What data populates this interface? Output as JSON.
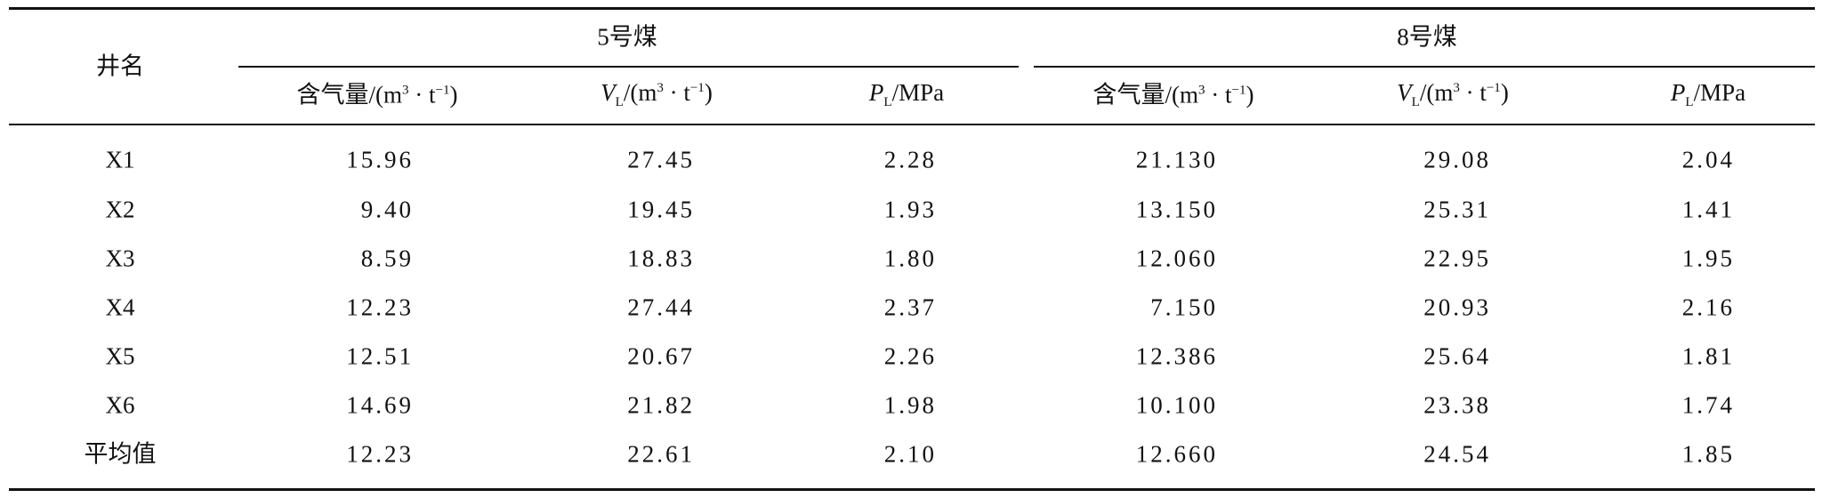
{
  "table": {
    "corner": "井名",
    "groups": [
      "5号煤",
      "8号煤"
    ],
    "columns": [
      {
        "parts": [
          "含气量/(m",
          "3",
          " · t",
          "−1",
          ")"
        ]
      },
      {
        "parts": [
          "V",
          "L",
          "/(m",
          "3",
          " · t",
          "−1",
          ")"
        ]
      },
      {
        "parts": [
          "P",
          "L",
          "/MPa"
        ]
      },
      {
        "parts": [
          "含气量/(m",
          "3",
          " · t",
          "−1",
          ")"
        ]
      },
      {
        "parts": [
          "V",
          "L",
          "/(m",
          "3",
          " · t",
          "−1",
          ")"
        ]
      },
      {
        "parts": [
          "P",
          "L",
          "/MPa"
        ]
      }
    ],
    "rows": [
      [
        "X1",
        "15.96",
        "27.45",
        "2.28",
        "21.130",
        "29.08",
        "2.04"
      ],
      [
        "X2",
        "9.40",
        "19.45",
        "1.93",
        "13.150",
        "25.31",
        "1.41"
      ],
      [
        "X3",
        "8.59",
        "18.83",
        "1.80",
        "12.060",
        "22.95",
        "1.95"
      ],
      [
        "X4",
        "12.23",
        "27.44",
        "2.37",
        "7.150",
        "20.93",
        "2.16"
      ],
      [
        "X5",
        "12.51",
        "20.67",
        "2.26",
        "12.386",
        "25.64",
        "1.81"
      ],
      [
        "X6",
        "14.69",
        "21.82",
        "1.98",
        "10.100",
        "23.38",
        "1.74"
      ],
      [
        "平均值",
        "12.23",
        "22.61",
        "2.10",
        "12.660",
        "24.54",
        "1.85"
      ]
    ]
  }
}
